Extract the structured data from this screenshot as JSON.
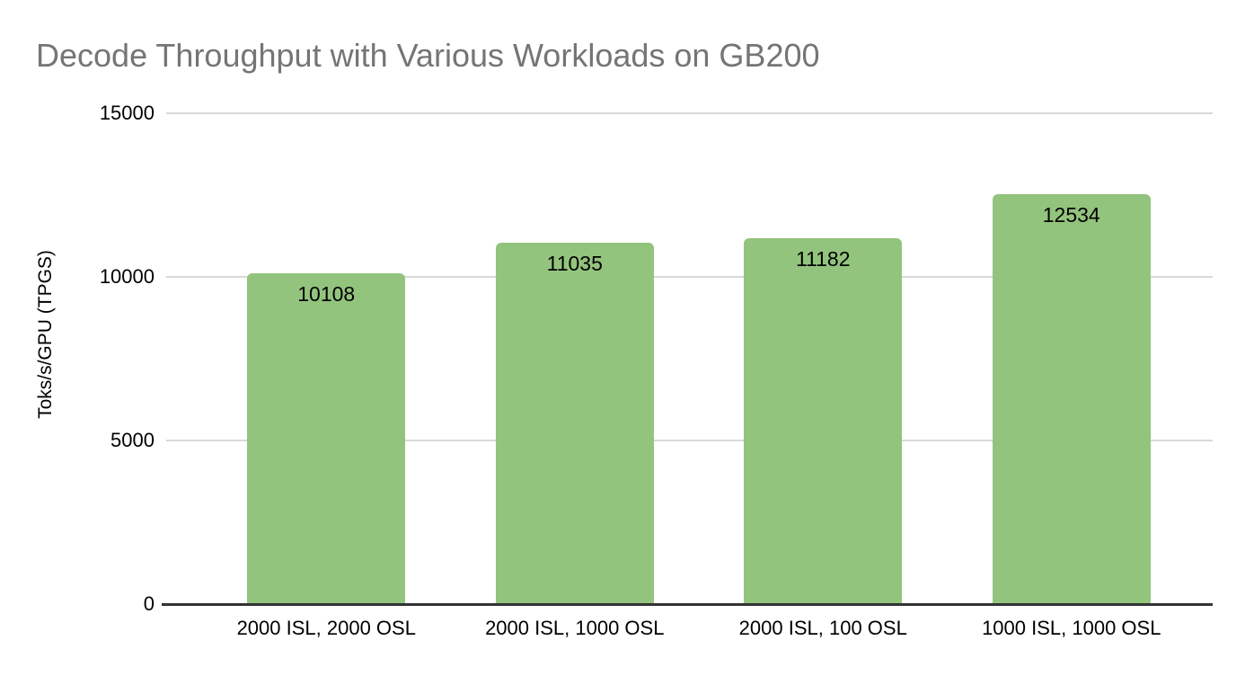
{
  "title": "Decode Throughput with Various Workloads on GB200",
  "chart_data": {
    "type": "bar",
    "title": "Decode Throughput with Various Workloads on GB200",
    "categories": [
      "2000 ISL, 2000 OSL",
      "2000 ISL, 1000 OSL",
      "2000 ISL, 100 OSL",
      "1000 ISL, 1000 OSL"
    ],
    "values": [
      10108,
      11035,
      11182,
      12534
    ],
    "bar_labels": [
      "10108",
      "11035",
      "11182",
      "12534"
    ],
    "xlabel": "",
    "ylabel": "Toks/s/GPU (TPGS)",
    "ylim": [
      0,
      15000
    ],
    "yticks": [
      0,
      5000,
      10000,
      15000
    ],
    "ytick_labels": [
      "0",
      "5000",
      "10000",
      "15000"
    ],
    "grid": "horizontal",
    "legend": "none"
  },
  "colors": {
    "bar_fill": "#93c47d",
    "gridline": "#d9d9d9",
    "axis_line": "#333333",
    "title_text": "#757575",
    "label_text": "#000000",
    "background": "#ffffff"
  }
}
